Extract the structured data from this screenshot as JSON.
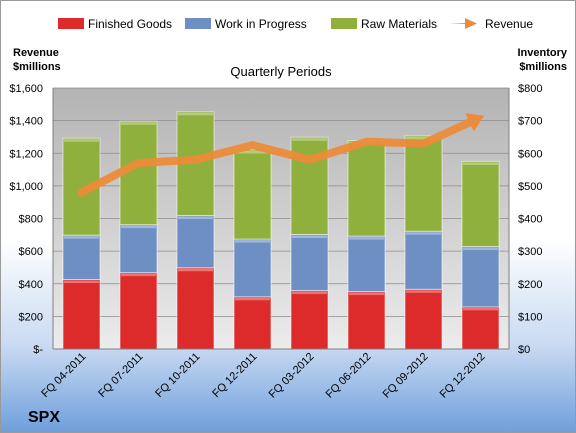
{
  "chart_data": {
    "type": "bar",
    "stacked": true,
    "title": "Quarterly Periods",
    "company": "SPX",
    "categories": [
      "FQ 04-2011",
      "FQ 07-2011",
      "FQ 10-2011",
      "FQ 12-2011",
      "FQ 03-2012",
      "FQ 06-2012",
      "FQ 09-2012",
      "FQ 12-2012"
    ],
    "left_axis": {
      "title_line1": "Revenue",
      "title_line2": "$millions",
      "range": [
        0,
        1600
      ],
      "ticks": [
        0,
        200,
        400,
        600,
        800,
        1000,
        1200,
        1400,
        1600
      ],
      "tick_labels": [
        "$-",
        "$200",
        "$400",
        "$600",
        "$800",
        "$1,000",
        "$1,200",
        "$1,400",
        "$1,600"
      ]
    },
    "right_axis": {
      "title_line1": "Inventory",
      "title_line2": "$millions",
      "range": [
        0,
        800
      ],
      "ticks": [
        0,
        100,
        200,
        300,
        400,
        500,
        600,
        700,
        800
      ],
      "tick_labels": [
        "$0",
        "$100",
        "$200",
        "$300",
        "$400",
        "$500",
        "$600",
        "$700",
        "$800"
      ]
    },
    "series": [
      {
        "name": "Finished Goods",
        "axis": "right",
        "color": "#dd2a2a",
        "values": [
          213,
          234,
          249,
          160,
          179,
          176,
          183,
          129
        ]
      },
      {
        "name": "Work in Progress",
        "axis": "right",
        "color": "#6d8fc4",
        "values": [
          136,
          147,
          160,
          177,
          172,
          170,
          178,
          185
        ]
      },
      {
        "name": "Raw Materials",
        "axis": "right",
        "color": "#8fb03c",
        "values": [
          297,
          317,
          318,
          273,
          298,
          293,
          292,
          261
        ]
      },
      {
        "name": "Revenue",
        "axis": "left",
        "type": "line",
        "color": "#ec8b3a",
        "values": [
          960,
          1140,
          1160,
          1250,
          1160,
          1270,
          1260,
          1420
        ]
      }
    ],
    "grid": true,
    "legend": "top"
  }
}
